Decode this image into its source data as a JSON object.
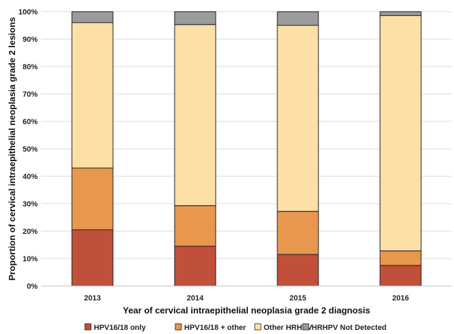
{
  "chart_data": {
    "type": "bar",
    "stacked": true,
    "categories": [
      "2013",
      "2014",
      "2015",
      "2016"
    ],
    "xlabel": "Year of cervical intraepithelial neoplasia grade 2 diagnosis",
    "ylabel": "Proportion of cervical intraepithelial neoplasia grade 2 lesions",
    "ylim": [
      0,
      100
    ],
    "yticks": [
      "0%",
      "10%",
      "20%",
      "30%",
      "40%",
      "50%",
      "60%",
      "70%",
      "80%",
      "90%",
      "100%"
    ],
    "grid": true,
    "legend_position": "bottom",
    "series": [
      {
        "name": "HPV16/18 only",
        "color": "#c0503a",
        "values": [
          20.5,
          14.5,
          11.5,
          7.5
        ]
      },
      {
        "name": "HPV16/18 + other",
        "color": "#e8974f",
        "values": [
          22.5,
          14.8,
          15.7,
          5.3
        ]
      },
      {
        "name": "Other HRHPV",
        "color": "#fde0a6",
        "values": [
          53.0,
          66.0,
          67.8,
          85.8
        ]
      },
      {
        "name": "HRHPV Not Detected",
        "color": "#9b9b9b",
        "values": [
          4.0,
          4.7,
          5.0,
          1.4
        ]
      }
    ]
  }
}
